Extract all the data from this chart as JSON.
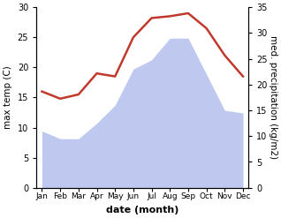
{
  "months": [
    "Jan",
    "Feb",
    "Mar",
    "Apr",
    "May",
    "Jun",
    "Jul",
    "Aug",
    "Sep",
    "Oct",
    "Nov",
    "Dec"
  ],
  "x": [
    0,
    1,
    2,
    3,
    4,
    5,
    6,
    7,
    8,
    9,
    10,
    11
  ],
  "temp": [
    16.0,
    14.8,
    15.5,
    19.0,
    18.5,
    25.0,
    28.2,
    28.5,
    29.0,
    26.5,
    22.0,
    18.5
  ],
  "precip": [
    11.0,
    9.5,
    9.5,
    12.5,
    16.0,
    23.0,
    24.8,
    29.0,
    29.0,
    22.0,
    15.0,
    14.5
  ],
  "temp_color": "#c0392b",
  "precip_fill_color": "#bfc9f0",
  "background_color": "#ffffff",
  "ylim_left": [
    0,
    30
  ],
  "ylim_right": [
    0,
    35
  ],
  "yticks_left": [
    0,
    5,
    10,
    15,
    20,
    25,
    30
  ],
  "yticks_right": [
    0,
    5,
    10,
    15,
    20,
    25,
    30,
    35
  ],
  "ylabel_left": "max temp (C)",
  "ylabel_right": "med. precipitation (kg/m2)",
  "xlabel": "date (month)",
  "line_width": 1.8,
  "figsize": [
    3.18,
    2.47
  ],
  "dpi": 100
}
